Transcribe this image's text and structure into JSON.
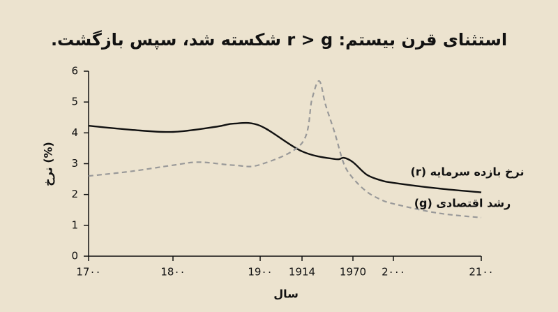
{
  "chart_data": {
    "type": "line",
    "title": "استثنای قرن بیستم: r > g شکسته شد، سپس بازگشت.",
    "xlabel": "سال",
    "ylabel": "نرخ (%)",
    "xlim": [
      1700,
      2100
    ],
    "ylim": [
      0,
      6
    ],
    "xticks": [
      {
        "value": 1700,
        "label": "17۰۰"
      },
      {
        "value": 1800,
        "label": "18۰۰"
      },
      {
        "value": 1900,
        "label": "19۰۰"
      },
      1914,
      1970,
      {
        "value": 2000,
        "label": "2۰۰۰"
      },
      {
        "value": 2100,
        "label": "21۰۰"
      }
    ],
    "yticks": [
      0,
      1,
      2,
      3,
      4,
      5,
      6
    ],
    "series": [
      {
        "name": "نرخ بازده سرمایه (r)",
        "color": "#111111",
        "dashed": false,
        "x": [
          1700,
          1750,
          1800,
          1850,
          1870,
          1900,
          1914,
          1950,
          1960,
          1970,
          1980,
          1990,
          2000,
          2050,
          2100
        ],
        "values": [
          4.23,
          4.1,
          4.03,
          4.2,
          4.3,
          4.23,
          3.4,
          3.15,
          3.19,
          3.05,
          2.65,
          2.47,
          2.38,
          2.2,
          2.07
        ]
      },
      {
        "name": "رشد اقتصادی (g)",
        "color": "#999999",
        "dashed": true,
        "x": [
          1700,
          1750,
          1800,
          1830,
          1870,
          1900,
          1914,
          1925,
          1933,
          1940,
          1950,
          1960,
          1970,
          1980,
          1990,
          2000,
          2050,
          2100
        ],
        "values": [
          2.6,
          2.75,
          2.95,
          3.05,
          2.95,
          2.97,
          3.67,
          5.1,
          5.68,
          4.9,
          4.0,
          3.0,
          2.53,
          2.1,
          1.85,
          1.7,
          1.4,
          1.25
        ]
      }
    ]
  }
}
